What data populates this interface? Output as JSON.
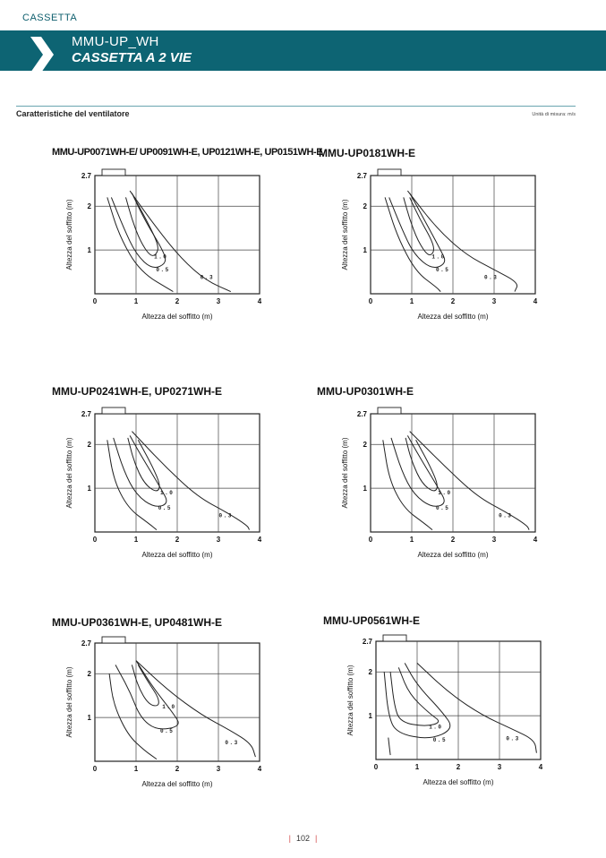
{
  "header": {
    "section": "CASSETTA",
    "title": "MMU-UP_WH",
    "subtitle": "CASSETTA A 2 VIE"
  },
  "fan_section": {
    "title": "Caratteristiche del ventilatore",
    "units": "Unità di misura: m/s"
  },
  "colors": {
    "banner": "#0d6473",
    "accent_rule": "#6aa5b0",
    "page_bar": "#d24b4b"
  },
  "chart_data": [
    {
      "type": "line",
      "title": "MMU-UP0071WH-E/ UP0091WH-E, UP0121WH-E, UP0151WH-E",
      "xlabel": "Altezza del soffitto (m)",
      "ylabel": "Altezza del soffitto (m)",
      "xlim": [
        0,
        4
      ],
      "ylim": [
        0,
        2.7
      ],
      "x_ticks": [
        "0",
        "1",
        "2",
        "3",
        "4"
      ],
      "y_ticks": [
        "1",
        "2",
        "2.7"
      ],
      "series": [
        {
          "name": "1.0",
          "points": [
            [
              0.75,
              2.2
            ],
            [
              0.9,
              1.7
            ],
            [
              1.1,
              1.2
            ],
            [
              1.35,
              0.85
            ],
            [
              1.5,
              0.9
            ],
            [
              1.55,
              1.1
            ],
            [
              1.3,
              1.6
            ],
            [
              0.95,
              2.2
            ]
          ]
        },
        {
          "name": "0.5",
          "points": [
            [
              0.4,
              2.2
            ],
            [
              0.7,
              1.5
            ],
            [
              1.0,
              0.9
            ],
            [
              1.4,
              0.55
            ],
            [
              1.75,
              0.7
            ],
            [
              1.65,
              1.0
            ],
            [
              1.2,
              1.7
            ],
            [
              0.9,
              2.3
            ]
          ]
        },
        {
          "name": "0.3",
          "points": [
            [
              0.3,
              2.2
            ],
            [
              0.6,
              1.3
            ],
            [
              1.1,
              0.5
            ],
            [
              1.9,
              0.05
            ]
          ]
        },
        {
          "name": "0.3",
          "points": [
            [
              0.85,
              2.35
            ],
            [
              1.5,
              1.5
            ],
            [
              2.1,
              0.8
            ],
            [
              2.7,
              0.3
            ],
            [
              3.3,
              0.05
            ]
          ]
        }
      ]
    },
    {
      "type": "line",
      "title": "MMU-UP0181WH-E",
      "xlabel": "Altezza del soffitto (m)",
      "ylabel": "Altezza del soffitto (m)",
      "xlim": [
        0,
        4
      ],
      "ylim": [
        0,
        2.7
      ],
      "x_ticks": [
        "0",
        "1",
        "2",
        "3",
        "4"
      ],
      "y_ticks": [
        "1",
        "2",
        "2.7"
      ],
      "series": [
        {
          "name": "1.0",
          "points": [
            [
              0.8,
              2.2
            ],
            [
              0.95,
              1.7
            ],
            [
              1.15,
              1.2
            ],
            [
              1.4,
              0.85
            ],
            [
              1.55,
              0.95
            ],
            [
              1.5,
              1.2
            ],
            [
              1.2,
              1.7
            ],
            [
              0.95,
              2.2
            ]
          ]
        },
        {
          "name": "0.5",
          "points": [
            [
              0.45,
              2.2
            ],
            [
              0.75,
              1.5
            ],
            [
              1.05,
              0.9
            ],
            [
              1.5,
              0.55
            ],
            [
              1.85,
              0.7
            ],
            [
              1.7,
              1.0
            ],
            [
              1.3,
              1.7
            ],
            [
              0.95,
              2.3
            ]
          ]
        },
        {
          "name": "0.3",
          "points": [
            [
              0.35,
              2.2
            ],
            [
              0.65,
              1.3
            ],
            [
              1.1,
              0.5
            ],
            [
              1.6,
              0.15
            ],
            [
              1.7,
              0.05
            ]
          ]
        },
        {
          "name": "0.3",
          "points": [
            [
              0.9,
              2.35
            ],
            [
              1.6,
              1.5
            ],
            [
              2.3,
              0.9
            ],
            [
              3.0,
              0.55
            ],
            [
              3.6,
              0.25
            ],
            [
              3.5,
              0.05
            ]
          ]
        }
      ]
    },
    {
      "type": "line",
      "title": "MMU-UP0241WH-E, UP0271WH-E",
      "xlabel": "Altezza del soffitto (m)",
      "ylabel": "Altezza del soffitto (m)",
      "xlim": [
        0,
        4
      ],
      "ylim": [
        0,
        2.7
      ],
      "x_ticks": [
        "0",
        "1",
        "2",
        "3",
        "4"
      ],
      "y_ticks": [
        "1",
        "2",
        "2.7"
      ],
      "series": [
        {
          "name": "1.0",
          "points": [
            [
              0.8,
              2.15
            ],
            [
              0.95,
              1.6
            ],
            [
              1.2,
              1.1
            ],
            [
              1.5,
              0.9
            ],
            [
              1.6,
              1.05
            ],
            [
              1.4,
              1.5
            ],
            [
              1.05,
              2.1
            ]
          ]
        },
        {
          "name": "0.5",
          "points": [
            [
              0.45,
              2.15
            ],
            [
              0.7,
              1.4
            ],
            [
              1.0,
              0.85
            ],
            [
              1.45,
              0.55
            ],
            [
              1.8,
              0.65
            ],
            [
              1.6,
              1.0
            ],
            [
              1.15,
              1.7
            ],
            [
              0.85,
              2.2
            ]
          ]
        },
        {
          "name": "0.3",
          "points": [
            [
              0.3,
              2.1
            ],
            [
              0.45,
              1.2
            ],
            [
              0.8,
              0.55
            ],
            [
              1.3,
              0.2
            ],
            [
              1.5,
              0.05
            ]
          ]
        },
        {
          "name": "0.3",
          "points": [
            [
              0.9,
              2.3
            ],
            [
              1.7,
              1.5
            ],
            [
              2.5,
              0.8
            ],
            [
              3.2,
              0.45
            ],
            [
              3.7,
              0.15
            ],
            [
              3.75,
              0.05
            ]
          ]
        }
      ]
    },
    {
      "type": "line",
      "title": "MMU-UP0301WH-E",
      "xlabel": "Altezza del soffitto (m)",
      "ylabel": "Altezza del soffitto (m)",
      "xlim": [
        0,
        4
      ],
      "ylim": [
        0,
        2.7
      ],
      "x_ticks": [
        "0",
        "1",
        "2",
        "3",
        "4"
      ],
      "y_ticks": [
        "1",
        "2",
        "2.7"
      ],
      "series": [
        {
          "name": "1.0",
          "points": [
            [
              0.85,
              2.15
            ],
            [
              1.0,
              1.6
            ],
            [
              1.25,
              1.1
            ],
            [
              1.55,
              0.9
            ],
            [
              1.65,
              1.05
            ],
            [
              1.45,
              1.5
            ],
            [
              1.1,
              2.1
            ]
          ]
        },
        {
          "name": "0.5",
          "points": [
            [
              0.5,
              2.15
            ],
            [
              0.75,
              1.4
            ],
            [
              1.05,
              0.85
            ],
            [
              1.5,
              0.55
            ],
            [
              1.85,
              0.65
            ],
            [
              1.65,
              1.0
            ],
            [
              1.2,
              1.7
            ],
            [
              0.9,
              2.2
            ]
          ]
        },
        {
          "name": "0.3",
          "points": [
            [
              0.3,
              2.1
            ],
            [
              0.45,
              1.2
            ],
            [
              0.8,
              0.55
            ],
            [
              1.3,
              0.2
            ],
            [
              1.5,
              0.05
            ]
          ]
        },
        {
          "name": "0.3",
          "points": [
            [
              0.95,
              2.3
            ],
            [
              1.8,
              1.5
            ],
            [
              2.6,
              0.8
            ],
            [
              3.3,
              0.45
            ],
            [
              3.8,
              0.15
            ],
            [
              3.85,
              0.05
            ]
          ]
        }
      ]
    },
    {
      "type": "line",
      "title": "MMU-UP0361WH-E, UP0481WH-E",
      "xlabel": "Altezza del soffitto (m)",
      "ylabel": "Altezza del soffitto (m)",
      "xlim": [
        0,
        4
      ],
      "ylim": [
        0,
        2.7
      ],
      "x_ticks": [
        "0",
        "1",
        "2",
        "3",
        "4"
      ],
      "y_ticks": [
        "1",
        "2",
        "2.7"
      ],
      "series": [
        {
          "name": "1.0",
          "points": [
            [
              0.9,
              2.2
            ],
            [
              1.05,
              1.7
            ],
            [
              1.3,
              1.3
            ],
            [
              1.55,
              1.25
            ],
            [
              1.55,
              1.45
            ],
            [
              1.3,
              1.8
            ],
            [
              1.05,
              2.2
            ]
          ]
        },
        {
          "name": "0.5",
          "points": [
            [
              0.5,
              2.2
            ],
            [
              0.85,
              1.6
            ],
            [
              1.1,
              1.0
            ],
            [
              1.5,
              0.7
            ],
            [
              2.1,
              0.8
            ],
            [
              1.9,
              1.1
            ],
            [
              1.4,
              1.7
            ],
            [
              1.0,
              2.3
            ]
          ]
        },
        {
          "name": "0.3",
          "points": [
            [
              0.35,
              2.0
            ],
            [
              0.45,
              1.3
            ],
            [
              0.8,
              0.6
            ],
            [
              1.2,
              0.25
            ],
            [
              1.5,
              0.05
            ]
          ]
        },
        {
          "name": "0.3",
          "points": [
            [
              1.0,
              2.3
            ],
            [
              1.8,
              1.6
            ],
            [
              2.6,
              1.05
            ],
            [
              3.3,
              0.7
            ],
            [
              3.8,
              0.4
            ],
            [
              3.9,
              0.1
            ]
          ]
        }
      ]
    },
    {
      "type": "line",
      "title": "MMU-UP0561WH-E",
      "xlabel": "Altezza del soffitto (m)",
      "ylabel": "Altezza del soffitto (m)",
      "xlim": [
        0,
        4
      ],
      "ylim": [
        0,
        2.7
      ],
      "x_ticks": [
        "0",
        "1",
        "2",
        "3",
        "4"
      ],
      "y_ticks": [
        "1",
        "2",
        "2.7"
      ],
      "series": [
        {
          "name": "1.0",
          "points": [
            [
              0.35,
              2.0
            ],
            [
              0.45,
              1.2
            ],
            [
              0.6,
              0.85
            ],
            [
              1.2,
              0.75
            ],
            [
              1.6,
              0.85
            ],
            [
              1.3,
              1.05
            ],
            [
              0.8,
              1.5
            ],
            [
              0.55,
              2.1
            ]
          ]
        },
        {
          "name": "0.5",
          "points": [
            [
              0.2,
              2.0
            ],
            [
              0.3,
              1.0
            ],
            [
              0.5,
              0.6
            ],
            [
              1.3,
              0.45
            ],
            [
              1.9,
              0.7
            ],
            [
              1.6,
              1.1
            ],
            [
              1.0,
              1.7
            ],
            [
              0.7,
              2.2
            ]
          ]
        },
        {
          "name": "0.3",
          "points": [
            [
              0.3,
              0.5
            ],
            [
              0.35,
              0.1
            ]
          ]
        },
        {
          "name": "0.3",
          "points": [
            [
              1.0,
              2.2
            ],
            [
              1.8,
              1.5
            ],
            [
              2.6,
              1.0
            ],
            [
              3.3,
              0.7
            ],
            [
              3.85,
              0.45
            ],
            [
              3.9,
              0.15
            ]
          ]
        }
      ]
    }
  ],
  "footer": {
    "page_number": "102"
  }
}
